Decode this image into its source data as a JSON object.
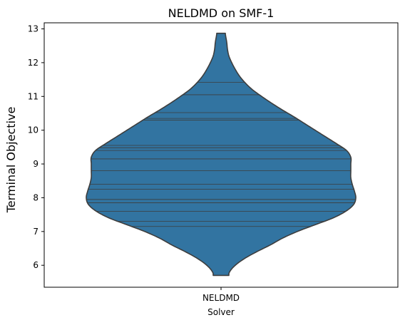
{
  "chart_data": {
    "type": "violin",
    "title": "NELDMD on SMF-1",
    "xlabel": "Solver",
    "ylabel": "Terminal Objective",
    "categories": [
      "NELDMD"
    ],
    "ylim": [
      5.35,
      13.18
    ],
    "yticks": [
      6,
      7,
      8,
      9,
      10,
      11,
      12,
      13
    ],
    "grid": false,
    "fill_color": "#3274a1",
    "edge_color": "#3d3d3d",
    "inner": "stick",
    "range": [
      5.7,
      12.87
    ],
    "density_profile": [
      [
        5.7,
        0.11
      ],
      [
        5.8,
        0.12
      ],
      [
        6.0,
        0.2
      ],
      [
        6.2,
        0.33
      ],
      [
        6.4,
        0.5
      ],
      [
        6.6,
        0.69
      ],
      [
        6.8,
        0.86
      ],
      [
        7.0,
        1.07
      ],
      [
        7.2,
        1.32
      ],
      [
        7.4,
        1.57
      ],
      [
        7.6,
        1.75
      ],
      [
        7.8,
        1.86
      ],
      [
        8.0,
        1.89
      ],
      [
        8.2,
        1.87
      ],
      [
        8.4,
        1.84
      ],
      [
        8.6,
        1.82
      ],
      [
        8.8,
        1.82
      ],
      [
        9.0,
        1.82
      ],
      [
        9.2,
        1.82
      ],
      [
        9.4,
        1.76
      ],
      [
        9.6,
        1.62
      ],
      [
        9.8,
        1.47
      ],
      [
        10.0,
        1.32
      ],
      [
        10.2,
        1.17
      ],
      [
        10.4,
        1.02
      ],
      [
        10.6,
        0.86
      ],
      [
        10.8,
        0.71
      ],
      [
        11.0,
        0.57
      ],
      [
        11.2,
        0.44
      ],
      [
        11.4,
        0.34
      ],
      [
        11.6,
        0.26
      ],
      [
        11.8,
        0.2
      ],
      [
        12.0,
        0.15
      ],
      [
        12.2,
        0.11
      ],
      [
        12.4,
        0.09
      ],
      [
        12.6,
        0.08
      ],
      [
        12.87,
        0.06
      ]
    ],
    "observations": [
      7.15,
      7.3,
      7.6,
      7.85,
      7.95,
      8.25,
      8.4,
      8.8,
      9.15,
      9.4,
      9.48,
      9.55,
      10.3,
      10.35,
      10.52,
      11.05,
      11.42
    ]
  }
}
